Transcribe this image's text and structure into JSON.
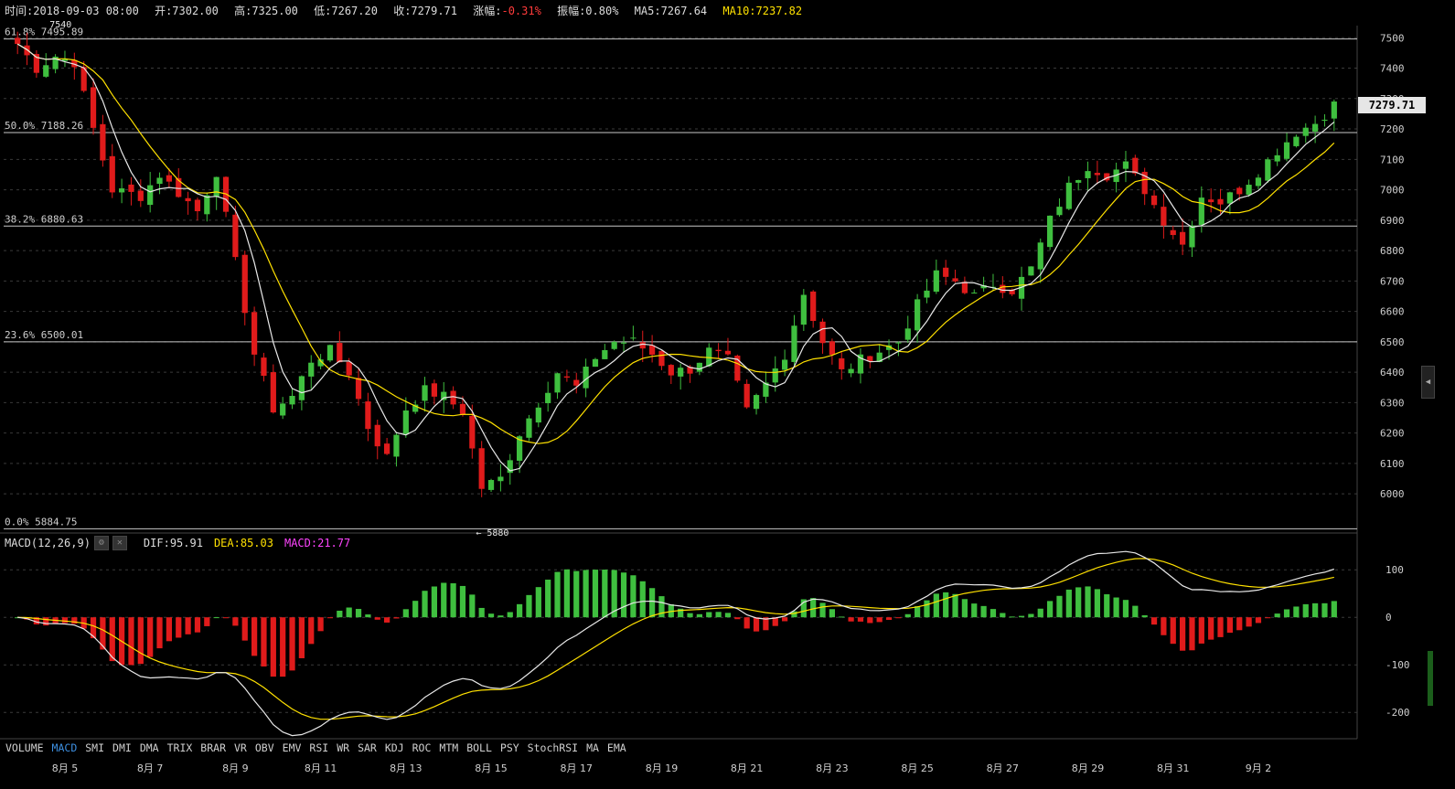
{
  "header": {
    "time": "时间:2018-09-03 08:00",
    "open": "开:7302.00",
    "high": "高:7325.00",
    "low": "低:7267.20",
    "close": "收:7279.71",
    "change_label": "涨幅:",
    "change_value": "-0.31%",
    "amplitude": "振幅:0.80%",
    "ma5": "MA5:7267.64",
    "ma10": "MA10:7237.82"
  },
  "macd_header": {
    "label": "MACD(12,26,9)",
    "dif": "DIF:95.91",
    "dea": "DEA:85.03",
    "macd": "MACD:21.77"
  },
  "last_price": "7279.71",
  "tabs": [
    "VOLUME",
    "MACD",
    "SMI",
    "DMI",
    "DMA",
    "TRIX",
    "BRAR",
    "VR",
    "OBV",
    "EMV",
    "RSI",
    "WR",
    "SAR",
    "KDJ",
    "ROC",
    "MTM",
    "BOLL",
    "PSY",
    "StochRSI",
    "MA",
    "EMA"
  ],
  "active_tab": "MACD",
  "colors": {
    "up": "#3fbf3f",
    "down": "#e01b1b",
    "ma5": "#e8e8e8",
    "ma10": "#ffe100",
    "fib": "#c8c8c8",
    "grid": "#3a3a3a"
  },
  "chart_data": [
    {
      "type": "candlestick",
      "n": 140,
      "ylim": [
        5880,
        7540
      ],
      "yticks": [
        6000,
        6100,
        6200,
        6300,
        6400,
        6500,
        6600,
        6700,
        6800,
        6900,
        7000,
        7100,
        7200,
        7300,
        7400,
        7500
      ],
      "x_labels": [
        {
          "i": 5,
          "label": "8月 5"
        },
        {
          "i": 14,
          "label": "8月 7"
        },
        {
          "i": 23,
          "label": "8月 9"
        },
        {
          "i": 32,
          "label": "8月 11"
        },
        {
          "i": 41,
          "label": "8月 13"
        },
        {
          "i": 50,
          "label": "8月 15"
        },
        {
          "i": 59,
          "label": "8月 17"
        },
        {
          "i": 68,
          "label": "8月 19"
        },
        {
          "i": 77,
          "label": "8月 21"
        },
        {
          "i": 86,
          "label": "8月 23"
        },
        {
          "i": 95,
          "label": "8月 25"
        },
        {
          "i": 104,
          "label": "8月 27"
        },
        {
          "i": 113,
          "label": "8月 29"
        },
        {
          "i": 122,
          "label": "8月 31"
        },
        {
          "i": 131,
          "label": "9月 2"
        }
      ],
      "fib_levels": [
        {
          "label": "61.8% 7495.89",
          "value": 7495.89
        },
        {
          "label": "50.0% 7188.26",
          "value": 7188.26
        },
        {
          "label": "38.2% 6880.63",
          "value": 6880.63
        },
        {
          "label": "23.6% 6500.01",
          "value": 6500.01
        },
        {
          "label": "0.0% 5884.75",
          "value": 5884.75
        }
      ],
      "annotations": [
        {
          "label": "7540",
          "i": 3,
          "value": 7540
        },
        {
          "label": "← 5880",
          "i": 48,
          "value": 5880
        }
      ],
      "anchors": [
        [
          0,
          7480
        ],
        [
          2,
          7400
        ],
        [
          4,
          7440
        ],
        [
          6,
          7420
        ],
        [
          8,
          7200
        ],
        [
          10,
          7000
        ],
        [
          13,
          6980
        ],
        [
          15,
          7050
        ],
        [
          17,
          6990
        ],
        [
          19,
          6930
        ],
        [
          21,
          7060
        ],
        [
          23,
          6760
        ],
        [
          25,
          6460
        ],
        [
          27,
          6280
        ],
        [
          29,
          6320
        ],
        [
          31,
          6440
        ],
        [
          33,
          6470
        ],
        [
          35,
          6400
        ],
        [
          37,
          6220
        ],
        [
          39,
          6120
        ],
        [
          41,
          6280
        ],
        [
          43,
          6340
        ],
        [
          45,
          6320
        ],
        [
          47,
          6270
        ],
        [
          49,
          6020
        ],
        [
          51,
          6050
        ],
        [
          53,
          6200
        ],
        [
          55,
          6300
        ],
        [
          57,
          6400
        ],
        [
          59,
          6350
        ],
        [
          61,
          6450
        ],
        [
          63,
          6500
        ],
        [
          65,
          6500
        ],
        [
          67,
          6460
        ],
        [
          69,
          6400
        ],
        [
          71,
          6410
        ],
        [
          73,
          6470
        ],
        [
          75,
          6440
        ],
        [
          77,
          6270
        ],
        [
          79,
          6360
        ],
        [
          81,
          6460
        ],
        [
          83,
          6660
        ],
        [
          85,
          6500
        ],
        [
          87,
          6400
        ],
        [
          89,
          6440
        ],
        [
          91,
          6470
        ],
        [
          93,
          6500
        ],
        [
          95,
          6620
        ],
        [
          97,
          6720
        ],
        [
          99,
          6700
        ],
        [
          101,
          6650
        ],
        [
          103,
          6690
        ],
        [
          105,
          6670
        ],
        [
          107,
          6740
        ],
        [
          109,
          6900
        ],
        [
          111,
          7010
        ],
        [
          113,
          7080
        ],
        [
          115,
          7050
        ],
        [
          117,
          7080
        ],
        [
          119,
          7000
        ],
        [
          121,
          6900
        ],
        [
          123,
          6820
        ],
        [
          125,
          6980
        ],
        [
          127,
          6960
        ],
        [
          129,
          7000
        ],
        [
          131,
          7060
        ],
        [
          133,
          7130
        ],
        [
          135,
          7190
        ],
        [
          137,
          7220
        ],
        [
          139,
          7280
        ]
      ]
    },
    {
      "type": "macd",
      "params": "MACD(12,26,9)",
      "ylim": [
        -240,
        135
      ],
      "yticks": [
        100,
        0,
        -100,
        -200
      ]
    }
  ]
}
